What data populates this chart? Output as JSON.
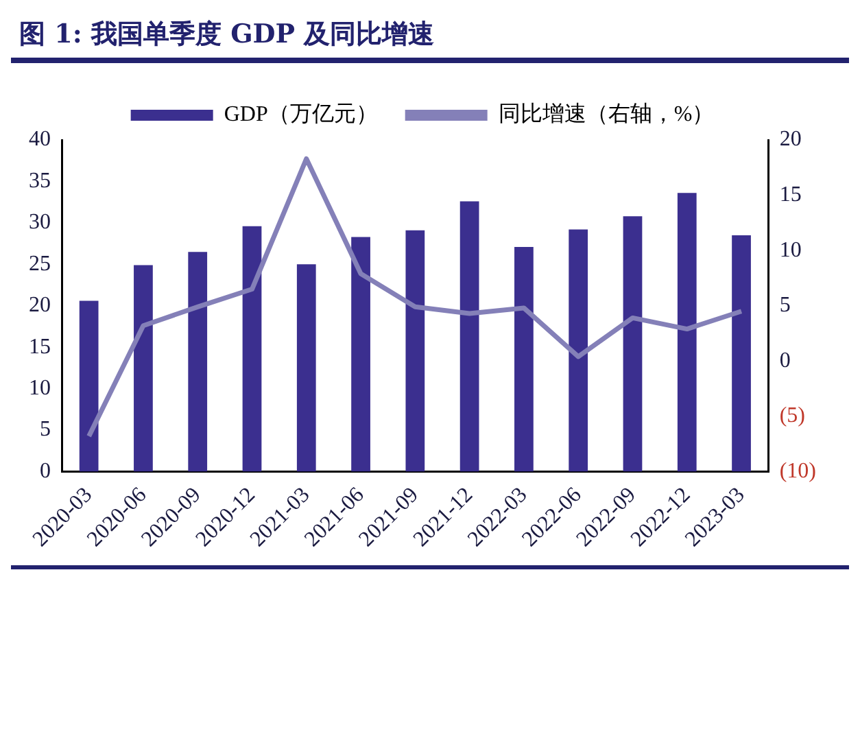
{
  "chart_data": {
    "type": "bar",
    "title": "图 1:  我国单季度 GDP 及同比增速",
    "categories": [
      "2020-03",
      "2020-06",
      "2020-09",
      "2020-12",
      "2021-03",
      "2021-06",
      "2021-09",
      "2021-12",
      "2022-03",
      "2022-06",
      "2022-09",
      "2022-12",
      "2023-03"
    ],
    "series": [
      {
        "name": "GDP（万亿元）",
        "color": "#3b2f8f",
        "values": [
          20.6,
          24.9,
          26.5,
          29.6,
          25.0,
          28.3,
          29.1,
          32.6,
          27.1,
          29.2,
          30.8,
          33.6,
          28.5
        ]
      },
      {
        "name": "同比增速（右轴，%）",
        "type": "line",
        "axis": "y2",
        "color": "#8480b8",
        "values": [
          -6.8,
          3.2,
          4.9,
          6.5,
          18.3,
          7.9,
          4.9,
          4.3,
          4.8,
          0.4,
          3.9,
          2.9,
          4.5
        ]
      }
    ],
    "ylim": [
      0,
      40
    ],
    "yticks": [
      0,
      5,
      10,
      15,
      20,
      25,
      30,
      35,
      40
    ],
    "y2lim": [
      -10,
      20
    ],
    "y2ticks": [
      {
        "value": -10,
        "label": "(10)"
      },
      {
        "value": -5,
        "label": "(5)"
      },
      0,
      5,
      10,
      15,
      20
    ],
    "grid": false,
    "legend": "top",
    "marker": "none"
  }
}
